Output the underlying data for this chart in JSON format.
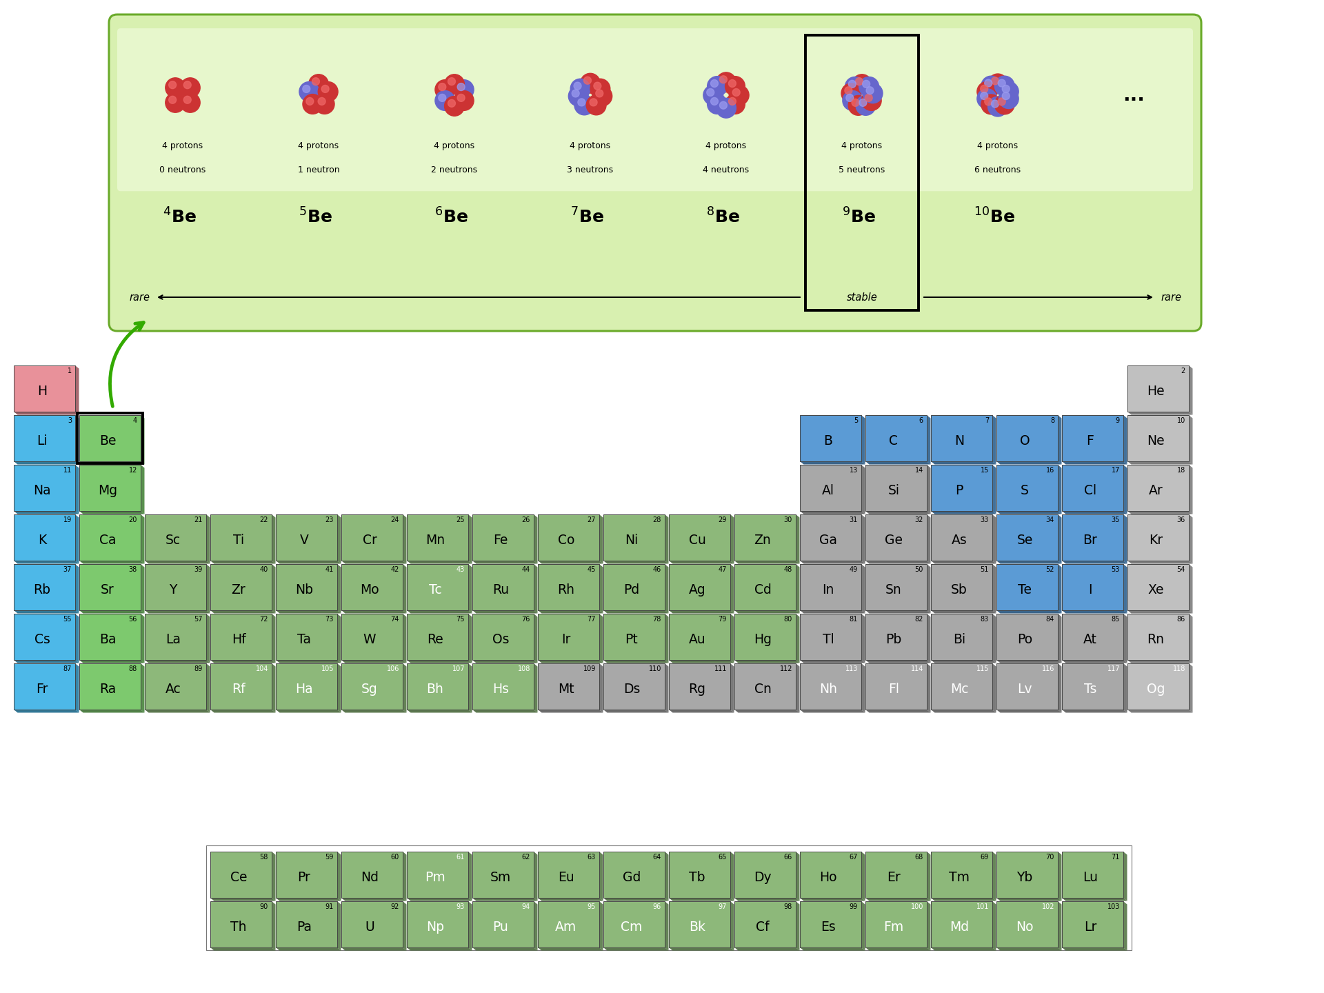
{
  "bg_color": "#ffffff",
  "colors": {
    "H": "#e8919a",
    "alkali": "#4db8e8",
    "alkaline": "#7dc96e",
    "transition": "#8db87a",
    "other_metal": "#a8a8a8",
    "nonmetal": "#5b9bd5",
    "noble": "#c0c0c0",
    "lanthanide": "#8db87a",
    "actinide": "#8db87a"
  },
  "elements": [
    {
      "symbol": "H",
      "number": 1,
      "col": 1,
      "row": 1,
      "color_key": "H"
    },
    {
      "symbol": "He",
      "number": 2,
      "col": 18,
      "row": 1,
      "color_key": "noble"
    },
    {
      "symbol": "Li",
      "number": 3,
      "col": 1,
      "row": 2,
      "color_key": "alkali"
    },
    {
      "symbol": "Be",
      "number": 4,
      "col": 2,
      "row": 2,
      "color_key": "alkaline",
      "highlighted": true
    },
    {
      "symbol": "B",
      "number": 5,
      "col": 13,
      "row": 2,
      "color_key": "nonmetal"
    },
    {
      "symbol": "C",
      "number": 6,
      "col": 14,
      "row": 2,
      "color_key": "nonmetal"
    },
    {
      "symbol": "N",
      "number": 7,
      "col": 15,
      "row": 2,
      "color_key": "nonmetal"
    },
    {
      "symbol": "O",
      "number": 8,
      "col": 16,
      "row": 2,
      "color_key": "nonmetal"
    },
    {
      "symbol": "F",
      "number": 9,
      "col": 17,
      "row": 2,
      "color_key": "nonmetal"
    },
    {
      "symbol": "Ne",
      "number": 10,
      "col": 18,
      "row": 2,
      "color_key": "noble"
    },
    {
      "symbol": "Na",
      "number": 11,
      "col": 1,
      "row": 3,
      "color_key": "alkali"
    },
    {
      "symbol": "Mg",
      "number": 12,
      "col": 2,
      "row": 3,
      "color_key": "alkaline"
    },
    {
      "symbol": "Al",
      "number": 13,
      "col": 13,
      "row": 3,
      "color_key": "other_metal"
    },
    {
      "symbol": "Si",
      "number": 14,
      "col": 14,
      "row": 3,
      "color_key": "other_metal"
    },
    {
      "symbol": "P",
      "number": 15,
      "col": 15,
      "row": 3,
      "color_key": "nonmetal"
    },
    {
      "symbol": "S",
      "number": 16,
      "col": 16,
      "row": 3,
      "color_key": "nonmetal"
    },
    {
      "symbol": "Cl",
      "number": 17,
      "col": 17,
      "row": 3,
      "color_key": "nonmetal"
    },
    {
      "symbol": "Ar",
      "number": 18,
      "col": 18,
      "row": 3,
      "color_key": "noble"
    },
    {
      "symbol": "K",
      "number": 19,
      "col": 1,
      "row": 4,
      "color_key": "alkali"
    },
    {
      "symbol": "Ca",
      "number": 20,
      "col": 2,
      "row": 4,
      "color_key": "alkaline"
    },
    {
      "symbol": "Sc",
      "number": 21,
      "col": 3,
      "row": 4,
      "color_key": "transition"
    },
    {
      "symbol": "Ti",
      "number": 22,
      "col": 4,
      "row": 4,
      "color_key": "transition"
    },
    {
      "symbol": "V",
      "number": 23,
      "col": 5,
      "row": 4,
      "color_key": "transition"
    },
    {
      "symbol": "Cr",
      "number": 24,
      "col": 6,
      "row": 4,
      "color_key": "transition"
    },
    {
      "symbol": "Mn",
      "number": 25,
      "col": 7,
      "row": 4,
      "color_key": "transition"
    },
    {
      "symbol": "Fe",
      "number": 26,
      "col": 8,
      "row": 4,
      "color_key": "transition"
    },
    {
      "symbol": "Co",
      "number": 27,
      "col": 9,
      "row": 4,
      "color_key": "transition"
    },
    {
      "symbol": "Ni",
      "number": 28,
      "col": 10,
      "row": 4,
      "color_key": "transition"
    },
    {
      "symbol": "Cu",
      "number": 29,
      "col": 11,
      "row": 4,
      "color_key": "transition"
    },
    {
      "symbol": "Zn",
      "number": 30,
      "col": 12,
      "row": 4,
      "color_key": "transition"
    },
    {
      "symbol": "Ga",
      "number": 31,
      "col": 13,
      "row": 4,
      "color_key": "other_metal"
    },
    {
      "symbol": "Ge",
      "number": 32,
      "col": 14,
      "row": 4,
      "color_key": "other_metal"
    },
    {
      "symbol": "As",
      "number": 33,
      "col": 15,
      "row": 4,
      "color_key": "other_metal"
    },
    {
      "symbol": "Se",
      "number": 34,
      "col": 16,
      "row": 4,
      "color_key": "nonmetal"
    },
    {
      "symbol": "Br",
      "number": 35,
      "col": 17,
      "row": 4,
      "color_key": "nonmetal"
    },
    {
      "symbol": "Kr",
      "number": 36,
      "col": 18,
      "row": 4,
      "color_key": "noble"
    },
    {
      "symbol": "Rb",
      "number": 37,
      "col": 1,
      "row": 5,
      "color_key": "alkali"
    },
    {
      "symbol": "Sr",
      "number": 38,
      "col": 2,
      "row": 5,
      "color_key": "alkaline"
    },
    {
      "symbol": "Y",
      "number": 39,
      "col": 3,
      "row": 5,
      "color_key": "transition"
    },
    {
      "symbol": "Zr",
      "number": 40,
      "col": 4,
      "row": 5,
      "color_key": "transition"
    },
    {
      "symbol": "Nb",
      "number": 41,
      "col": 5,
      "row": 5,
      "color_key": "transition"
    },
    {
      "symbol": "Mo",
      "number": 42,
      "col": 6,
      "row": 5,
      "color_key": "transition"
    },
    {
      "symbol": "Tc",
      "number": 43,
      "col": 7,
      "row": 5,
      "color_key": "transition",
      "white_text": true
    },
    {
      "symbol": "Ru",
      "number": 44,
      "col": 8,
      "row": 5,
      "color_key": "transition"
    },
    {
      "symbol": "Rh",
      "number": 45,
      "col": 9,
      "row": 5,
      "color_key": "transition"
    },
    {
      "symbol": "Pd",
      "number": 46,
      "col": 10,
      "row": 5,
      "color_key": "transition"
    },
    {
      "symbol": "Ag",
      "number": 47,
      "col": 11,
      "row": 5,
      "color_key": "transition"
    },
    {
      "symbol": "Cd",
      "number": 48,
      "col": 12,
      "row": 5,
      "color_key": "transition"
    },
    {
      "symbol": "In",
      "number": 49,
      "col": 13,
      "row": 5,
      "color_key": "other_metal"
    },
    {
      "symbol": "Sn",
      "number": 50,
      "col": 14,
      "row": 5,
      "color_key": "other_metal"
    },
    {
      "symbol": "Sb",
      "number": 51,
      "col": 15,
      "row": 5,
      "color_key": "other_metal"
    },
    {
      "symbol": "Te",
      "number": 52,
      "col": 16,
      "row": 5,
      "color_key": "nonmetal"
    },
    {
      "symbol": "I",
      "number": 53,
      "col": 17,
      "row": 5,
      "color_key": "nonmetal"
    },
    {
      "symbol": "Xe",
      "number": 54,
      "col": 18,
      "row": 5,
      "color_key": "noble"
    },
    {
      "symbol": "Cs",
      "number": 55,
      "col": 1,
      "row": 6,
      "color_key": "alkali"
    },
    {
      "symbol": "Ba",
      "number": 56,
      "col": 2,
      "row": 6,
      "color_key": "alkaline"
    },
    {
      "symbol": "La",
      "number": 57,
      "col": 3,
      "row": 6,
      "color_key": "transition"
    },
    {
      "symbol": "Hf",
      "number": 72,
      "col": 4,
      "row": 6,
      "color_key": "transition"
    },
    {
      "symbol": "Ta",
      "number": 73,
      "col": 5,
      "row": 6,
      "color_key": "transition"
    },
    {
      "symbol": "W",
      "number": 74,
      "col": 6,
      "row": 6,
      "color_key": "transition"
    },
    {
      "symbol": "Re",
      "number": 75,
      "col": 7,
      "row": 6,
      "color_key": "transition"
    },
    {
      "symbol": "Os",
      "number": 76,
      "col": 8,
      "row": 6,
      "color_key": "transition"
    },
    {
      "symbol": "Ir",
      "number": 77,
      "col": 9,
      "row": 6,
      "color_key": "transition"
    },
    {
      "symbol": "Pt",
      "number": 78,
      "col": 10,
      "row": 6,
      "color_key": "transition"
    },
    {
      "symbol": "Au",
      "number": 79,
      "col": 11,
      "row": 6,
      "color_key": "transition"
    },
    {
      "symbol": "Hg",
      "number": 80,
      "col": 12,
      "row": 6,
      "color_key": "transition"
    },
    {
      "symbol": "Tl",
      "number": 81,
      "col": 13,
      "row": 6,
      "color_key": "other_metal"
    },
    {
      "symbol": "Pb",
      "number": 82,
      "col": 14,
      "row": 6,
      "color_key": "other_metal"
    },
    {
      "symbol": "Bi",
      "number": 83,
      "col": 15,
      "row": 6,
      "color_key": "other_metal"
    },
    {
      "symbol": "Po",
      "number": 84,
      "col": 16,
      "row": 6,
      "color_key": "other_metal"
    },
    {
      "symbol": "At",
      "number": 85,
      "col": 17,
      "row": 6,
      "color_key": "other_metal"
    },
    {
      "symbol": "Rn",
      "number": 86,
      "col": 18,
      "row": 6,
      "color_key": "noble"
    },
    {
      "symbol": "Fr",
      "number": 87,
      "col": 1,
      "row": 7,
      "color_key": "alkali"
    },
    {
      "symbol": "Ra",
      "number": 88,
      "col": 2,
      "row": 7,
      "color_key": "alkaline"
    },
    {
      "symbol": "Ac",
      "number": 89,
      "col": 3,
      "row": 7,
      "color_key": "transition"
    },
    {
      "symbol": "Rf",
      "number": 104,
      "col": 4,
      "row": 7,
      "color_key": "transition",
      "white_text": true
    },
    {
      "symbol": "Ha",
      "number": 105,
      "col": 5,
      "row": 7,
      "color_key": "transition",
      "white_text": true
    },
    {
      "symbol": "Sg",
      "number": 106,
      "col": 6,
      "row": 7,
      "color_key": "transition",
      "white_text": true
    },
    {
      "symbol": "Bh",
      "number": 107,
      "col": 7,
      "row": 7,
      "color_key": "transition",
      "white_text": true
    },
    {
      "symbol": "Hs",
      "number": 108,
      "col": 8,
      "row": 7,
      "color_key": "transition",
      "white_text": true
    },
    {
      "symbol": "Mt",
      "number": 109,
      "col": 9,
      "row": 7,
      "color_key": "other_metal"
    },
    {
      "symbol": "Ds",
      "number": 110,
      "col": 10,
      "row": 7,
      "color_key": "other_metal"
    },
    {
      "symbol": "Rg",
      "number": 111,
      "col": 11,
      "row": 7,
      "color_key": "other_metal"
    },
    {
      "symbol": "Cn",
      "number": 112,
      "col": 12,
      "row": 7,
      "color_key": "other_metal"
    },
    {
      "symbol": "Nh",
      "number": 113,
      "col": 13,
      "row": 7,
      "color_key": "other_metal",
      "white_text": true
    },
    {
      "symbol": "Fl",
      "number": 114,
      "col": 14,
      "row": 7,
      "color_key": "other_metal",
      "white_text": true
    },
    {
      "symbol": "Mc",
      "number": 115,
      "col": 15,
      "row": 7,
      "color_key": "other_metal",
      "white_text": true
    },
    {
      "symbol": "Lv",
      "number": 116,
      "col": 16,
      "row": 7,
      "color_key": "other_metal",
      "white_text": true
    },
    {
      "symbol": "Ts",
      "number": 117,
      "col": 17,
      "row": 7,
      "color_key": "other_metal",
      "white_text": true
    },
    {
      "symbol": "Og",
      "number": 118,
      "col": 18,
      "row": 7,
      "color_key": "noble",
      "white_text": true
    },
    {
      "symbol": "Ce",
      "number": 58,
      "col": 4,
      "row": 9,
      "color_key": "lanthanide"
    },
    {
      "symbol": "Pr",
      "number": 59,
      "col": 5,
      "row": 9,
      "color_key": "lanthanide"
    },
    {
      "symbol": "Nd",
      "number": 60,
      "col": 6,
      "row": 9,
      "color_key": "lanthanide"
    },
    {
      "symbol": "Pm",
      "number": 61,
      "col": 7,
      "row": 9,
      "color_key": "lanthanide",
      "white_text": true
    },
    {
      "symbol": "Sm",
      "number": 62,
      "col": 8,
      "row": 9,
      "color_key": "lanthanide"
    },
    {
      "symbol": "Eu",
      "number": 63,
      "col": 9,
      "row": 9,
      "color_key": "lanthanide"
    },
    {
      "symbol": "Gd",
      "number": 64,
      "col": 10,
      "row": 9,
      "color_key": "lanthanide"
    },
    {
      "symbol": "Tb",
      "number": 65,
      "col": 11,
      "row": 9,
      "color_key": "lanthanide"
    },
    {
      "symbol": "Dy",
      "number": 66,
      "col": 12,
      "row": 9,
      "color_key": "lanthanide"
    },
    {
      "symbol": "Ho",
      "number": 67,
      "col": 13,
      "row": 9,
      "color_key": "lanthanide"
    },
    {
      "symbol": "Er",
      "number": 68,
      "col": 14,
      "row": 9,
      "color_key": "lanthanide"
    },
    {
      "symbol": "Tm",
      "number": 69,
      "col": 15,
      "row": 9,
      "color_key": "lanthanide"
    },
    {
      "symbol": "Yb",
      "number": 70,
      "col": 16,
      "row": 9,
      "color_key": "lanthanide"
    },
    {
      "symbol": "Lu",
      "number": 71,
      "col": 17,
      "row": 9,
      "color_key": "lanthanide"
    },
    {
      "symbol": "Th",
      "number": 90,
      "col": 4,
      "row": 10,
      "color_key": "actinide"
    },
    {
      "symbol": "Pa",
      "number": 91,
      "col": 5,
      "row": 10,
      "color_key": "actinide"
    },
    {
      "symbol": "U",
      "number": 92,
      "col": 6,
      "row": 10,
      "color_key": "actinide"
    },
    {
      "symbol": "Np",
      "number": 93,
      "col": 7,
      "row": 10,
      "color_key": "actinide",
      "white_text": true
    },
    {
      "symbol": "Pu",
      "number": 94,
      "col": 8,
      "row": 10,
      "color_key": "actinide",
      "white_text": true
    },
    {
      "symbol": "Am",
      "number": 95,
      "col": 9,
      "row": 10,
      "color_key": "actinide",
      "white_text": true
    },
    {
      "symbol": "Cm",
      "number": 96,
      "col": 10,
      "row": 10,
      "color_key": "actinide",
      "white_text": true
    },
    {
      "symbol": "Bk",
      "number": 97,
      "col": 11,
      "row": 10,
      "color_key": "actinide",
      "white_text": true
    },
    {
      "symbol": "Cf",
      "number": 98,
      "col": 12,
      "row": 10,
      "color_key": "actinide"
    },
    {
      "symbol": "Es",
      "number": 99,
      "col": 13,
      "row": 10,
      "color_key": "actinide"
    },
    {
      "symbol": "Fm",
      "number": 100,
      "col": 14,
      "row": 10,
      "color_key": "actinide",
      "white_text": true
    },
    {
      "symbol": "Md",
      "number": 101,
      "col": 15,
      "row": 10,
      "color_key": "actinide",
      "white_text": true
    },
    {
      "symbol": "No",
      "number": 102,
      "col": 16,
      "row": 10,
      "color_key": "actinide",
      "white_text": true
    },
    {
      "symbol": "Lr",
      "number": 103,
      "col": 17,
      "row": 10,
      "color_key": "actinide"
    }
  ],
  "isotope_neutron_text": [
    "0 neutrons",
    "1 neutron",
    "2 neutrons",
    "3 neutrons",
    "4 neutrons",
    "5 neutrons",
    "6 neutrons"
  ]
}
